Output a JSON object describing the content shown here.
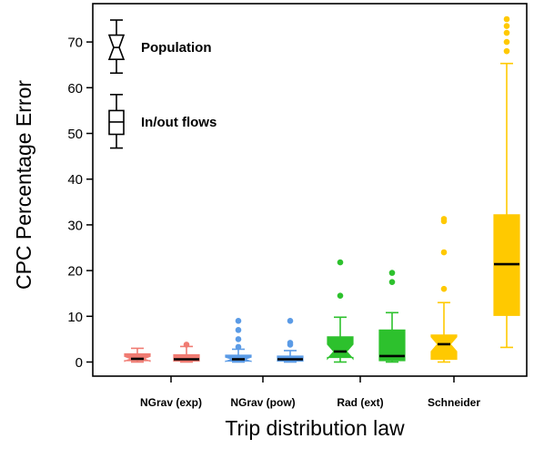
{
  "chart_data": {
    "type": "boxplot",
    "xlabel": "Trip distribution law",
    "ylabel": "CPC Percentage Error",
    "ylim": [
      -3,
      78
    ],
    "yticks": [
      0,
      10,
      20,
      30,
      40,
      50,
      60,
      70
    ],
    "categories": [
      "NGrav (exp)",
      "NGrav (pow)",
      "Rad (ext)",
      "Schneider"
    ],
    "legend": [
      {
        "label": "Population",
        "style": "notched"
      },
      {
        "label": "In/out flows",
        "style": "rectangular"
      }
    ],
    "boxes": [
      {
        "category": "NGrav (exp)",
        "variant": "Population",
        "color": "#F07B72",
        "q1": 0.3,
        "median": 0.7,
        "q3": 1.8,
        "whisker_low": 0.0,
        "whisker_high": 3.0,
        "outliers": []
      },
      {
        "category": "NGrav (exp)",
        "variant": "In/out flows",
        "color": "#F07B72",
        "q1": 0.2,
        "median": 0.6,
        "q3": 1.6,
        "whisker_low": 0.0,
        "whisker_high": 3.4,
        "outliers": [
          3.8
        ]
      },
      {
        "category": "NGrav (pow)",
        "variant": "Population",
        "color": "#5B9BE6",
        "q1": 0.2,
        "median": 0.6,
        "q3": 1.5,
        "whisker_low": 0.0,
        "whisker_high": 2.8,
        "outliers": [
          3.3,
          5.0,
          7.0,
          9.0
        ]
      },
      {
        "category": "NGrav (pow)",
        "variant": "In/out flows",
        "color": "#5B9BE6",
        "q1": 0.2,
        "median": 0.6,
        "q3": 1.3,
        "whisker_low": 0.0,
        "whisker_high": 2.5,
        "outliers": [
          3.8,
          4.2,
          9.0
        ]
      },
      {
        "category": "Rad (ext)",
        "variant": "Population",
        "color": "#2DC12D",
        "q1": 1.0,
        "median": 2.3,
        "q3": 5.5,
        "whisker_low": 0.0,
        "whisker_high": 9.8,
        "outliers": [
          14.5,
          21.8
        ]
      },
      {
        "category": "Rad (ext)",
        "variant": "In/out flows",
        "color": "#2DC12D",
        "q1": 0.3,
        "median": 1.3,
        "q3": 7.0,
        "whisker_low": 0.0,
        "whisker_high": 10.8,
        "outliers": [
          17.5,
          19.5
        ]
      },
      {
        "category": "Schneider",
        "variant": "Population",
        "color": "#FFC900",
        "q1": 0.6,
        "median": 3.9,
        "q3": 5.9,
        "whisker_low": 0.0,
        "whisker_high": 13.0,
        "outliers": [
          16.0,
          24.0,
          30.8,
          31.3
        ]
      },
      {
        "category": "Schneider",
        "variant": "In/out flows",
        "color": "#FFC900",
        "q1": 10.2,
        "median": 21.4,
        "q3": 32.2,
        "whisker_low": 3.2,
        "whisker_high": 65.3,
        "outliers": [
          68.0,
          70.0,
          72.0,
          73.5,
          75.0
        ]
      }
    ]
  }
}
